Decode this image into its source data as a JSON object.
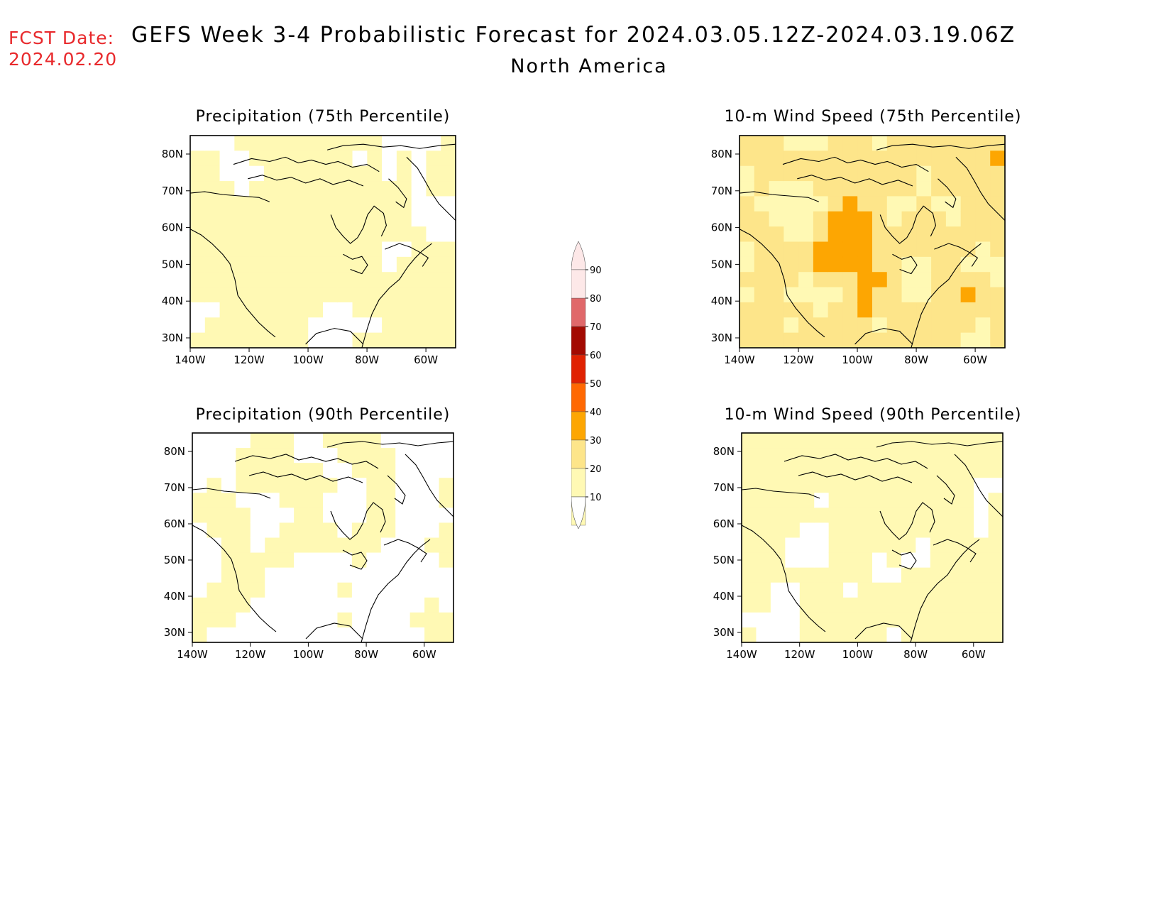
{
  "header": {
    "fcst_label": "FCST Date:",
    "fcst_date": "2024.02.20",
    "title": "GEFS Week 3-4 Probabilistic Forecast for 2024.03.05.12Z-2024.03.19.06Z",
    "region": "North America"
  },
  "panels": [
    {
      "id": "precip-75",
      "title": "Precipitation (75th Percentile)",
      "intensity": 0.85
    },
    {
      "id": "wind-75",
      "title": "10-m Wind Speed (75th Percentile)",
      "intensity": 1.85
    },
    {
      "id": "precip-90",
      "title": "Precipitation (90th Percentile)",
      "intensity": 0.35
    },
    {
      "id": "wind-90",
      "title": "10-m Wind Speed (90th Percentile)",
      "intensity": 0.8
    }
  ],
  "axes": {
    "lat_labels": [
      "80N",
      "70N",
      "60N",
      "50N",
      "40N",
      "30N"
    ],
    "lon_labels": [
      "140W",
      "120W",
      "100W",
      "80W",
      "60W"
    ]
  },
  "colorbar": {
    "labels": [
      "90",
      "80",
      "70",
      "60",
      "50",
      "40",
      "30",
      "20",
      "10"
    ],
    "colors": {
      "10": "#fff9b4",
      "20": "#fde58a",
      "30": "#fda602",
      "40": "#ff6802",
      "50": "#e02202",
      "60": "#a30a02",
      "70": "#e0686a",
      "80": "#f4a6a8",
      "90": "#fde8e8"
    }
  }
}
